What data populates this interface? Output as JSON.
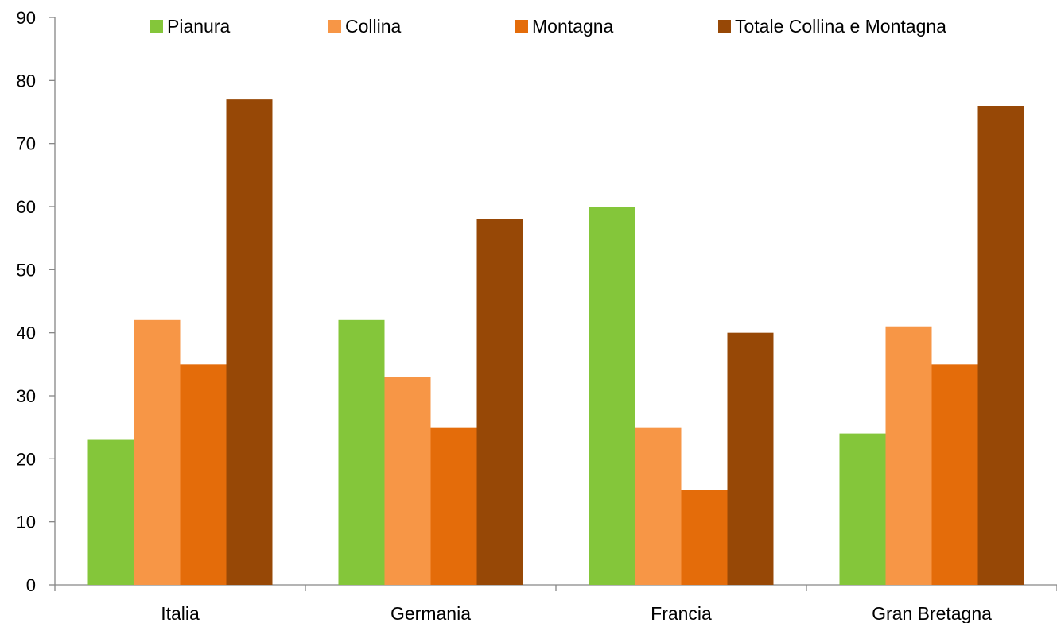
{
  "chart_data": {
    "type": "bar",
    "title": "",
    "xlabel": "",
    "ylabel": "",
    "ylim": [
      0,
      90
    ],
    "yticks": [
      0,
      10,
      20,
      30,
      40,
      50,
      60,
      70,
      80,
      90
    ],
    "grid": false,
    "legend_position": "top",
    "categories": [
      "Italia",
      "Germania",
      "Francia",
      "Gran Bretagna"
    ],
    "series": [
      {
        "name": "Pianura",
        "color": "#84C63A",
        "values": [
          23,
          42,
          60,
          24
        ]
      },
      {
        "name": "Collina",
        "color": "#F79646",
        "values": [
          42,
          33,
          25,
          41
        ]
      },
      {
        "name": "Montagna",
        "color": "#E46C0A",
        "values": [
          35,
          25,
          15,
          35
        ]
      },
      {
        "name": "Totale Collina e Montagna",
        "color": "#974806",
        "values": [
          77,
          58,
          40,
          76
        ]
      }
    ]
  }
}
